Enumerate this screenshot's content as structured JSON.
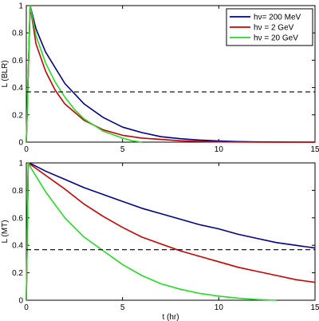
{
  "chart_data": [
    {
      "type": "line",
      "panel": "top",
      "title": "",
      "xlabel": "",
      "ylabel": "L (BLR)",
      "xlim": [
        0,
        15
      ],
      "ylim": [
        0,
        1
      ],
      "xticks": [
        "0",
        "5",
        "10",
        "15"
      ],
      "yticks": [
        "0",
        "0.2",
        "0.4",
        "0.6",
        "0.8",
        "1"
      ],
      "grid": false,
      "legend_position": "top-right",
      "reference_line": {
        "y": 0.368,
        "style": "dashed",
        "color": "#000000"
      },
      "series": [
        {
          "name": "hν= 200 MeV",
          "color": "#00008b",
          "x": [
            0,
            0.2,
            0.5,
            1,
            2,
            3,
            4,
            5,
            6,
            7,
            8,
            9,
            10,
            11,
            12,
            13,
            14,
            15
          ],
          "y": [
            0,
            1.0,
            0.83,
            0.66,
            0.43,
            0.28,
            0.18,
            0.11,
            0.07,
            0.04,
            0.025,
            0.015,
            0.008,
            0.004,
            0.002,
            0.001,
            0.0,
            0.0
          ]
        },
        {
          "name": "hν = 2 GeV",
          "color": "#cc0000",
          "x": [
            0,
            0.2,
            0.5,
            1,
            1.5,
            2,
            3,
            4,
            5,
            6,
            7,
            8,
            9,
            10,
            11,
            12,
            13,
            14,
            15
          ],
          "y": [
            0,
            1.0,
            0.72,
            0.52,
            0.38,
            0.28,
            0.16,
            0.09,
            0.05,
            0.03,
            0.02,
            0.01,
            0.005,
            0.002,
            0.001,
            0.0,
            0.0,
            0.0,
            0.0
          ]
        },
        {
          "name": "hν = 20 GeV",
          "color": "#22dd22",
          "x": [
            0,
            0.2,
            0.5,
            1,
            1.5,
            2,
            2.5,
            3,
            4,
            5,
            5.5,
            6
          ],
          "y": [
            0,
            1.0,
            0.78,
            0.58,
            0.44,
            0.33,
            0.24,
            0.17,
            0.08,
            0.03,
            0.01,
            0.0
          ]
        }
      ]
    },
    {
      "type": "line",
      "panel": "bottom",
      "title": "",
      "xlabel": "t (hr)",
      "ylabel": "L (MT)",
      "xlim": [
        0,
        15
      ],
      "ylim": [
        0,
        1
      ],
      "xticks": [
        "0",
        "5",
        "10",
        "15"
      ],
      "yticks": [
        "0",
        "0.2",
        "0.4",
        "0.6",
        "0.8",
        "1"
      ],
      "grid": false,
      "reference_line": {
        "y": 0.368,
        "style": "dashed",
        "color": "#000000"
      },
      "series": [
        {
          "name": "hν= 200 MeV",
          "color": "#00008b",
          "x": [
            0,
            0.1,
            0.3,
            1,
            2,
            3,
            4,
            5,
            6,
            7,
            8,
            9,
            10,
            11,
            12,
            13,
            14,
            15
          ],
          "y": [
            0,
            1.0,
            0.99,
            0.94,
            0.88,
            0.82,
            0.77,
            0.72,
            0.67,
            0.63,
            0.59,
            0.55,
            0.52,
            0.48,
            0.45,
            0.42,
            0.4,
            0.38
          ]
        },
        {
          "name": "hν = 2 GeV",
          "color": "#cc0000",
          "x": [
            0,
            0.1,
            0.3,
            1,
            2,
            3,
            4,
            5,
            6,
            7,
            8,
            9,
            10,
            11,
            12,
            13,
            14,
            15
          ],
          "y": [
            0,
            1.0,
            0.98,
            0.91,
            0.81,
            0.7,
            0.61,
            0.53,
            0.46,
            0.41,
            0.36,
            0.32,
            0.28,
            0.24,
            0.21,
            0.18,
            0.15,
            0.13
          ]
        },
        {
          "name": "hν = 20 GeV",
          "color": "#22dd22",
          "x": [
            0,
            0.1,
            0.3,
            1,
            2,
            3,
            4,
            5,
            6,
            7,
            8,
            9,
            10,
            11,
            12,
            13
          ],
          "y": [
            0,
            1.0,
            0.95,
            0.79,
            0.6,
            0.46,
            0.36,
            0.26,
            0.18,
            0.12,
            0.08,
            0.05,
            0.03,
            0.015,
            0.005,
            0.0
          ]
        }
      ]
    }
  ]
}
